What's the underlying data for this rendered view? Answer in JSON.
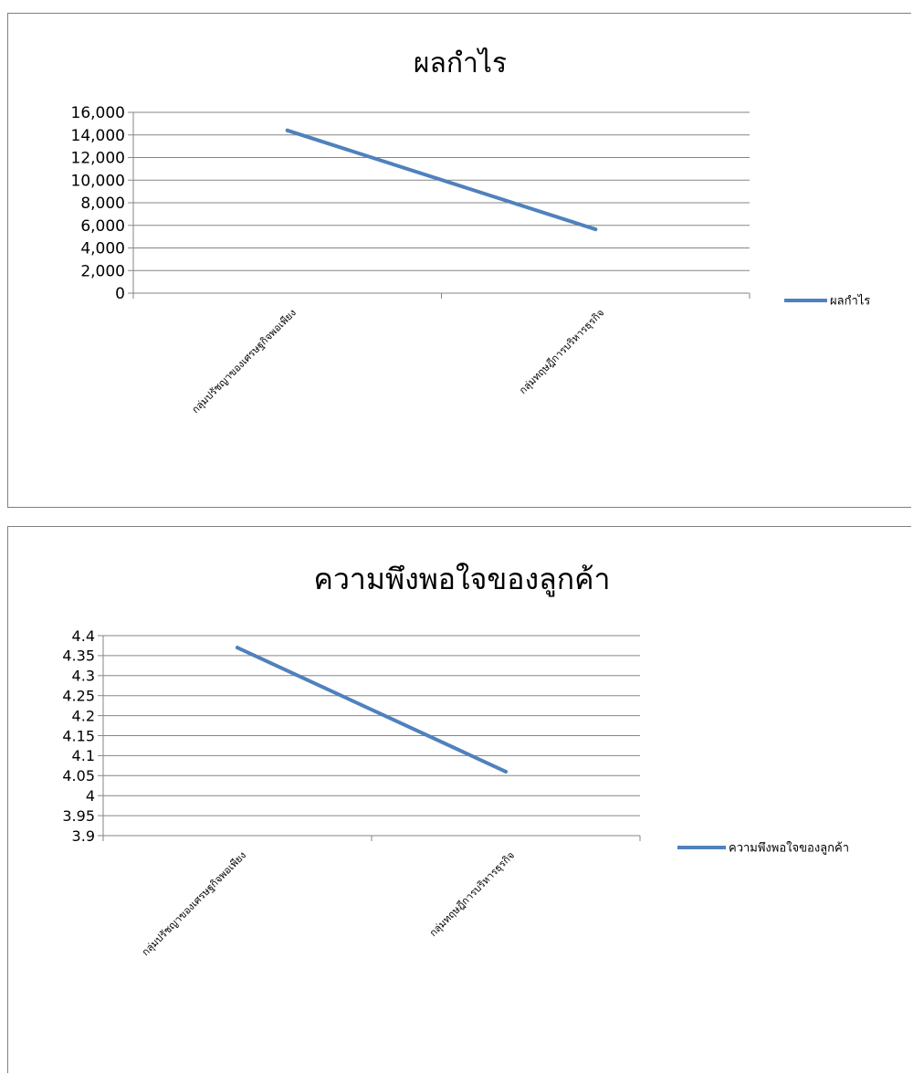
{
  "chart_data": [
    {
      "type": "line",
      "title": "ผลกำไร",
      "categories": [
        "กลุ่มปรัชญาของเศรษฐกิจพอเพียง",
        "กลุ่มทฤษฎีการบริหารธุรกิจ"
      ],
      "series": [
        {
          "name": "ผลกำไร",
          "values": [
            14400,
            5650
          ],
          "color": "#4F81BD"
        }
      ],
      "yticks": [
        "16,000",
        "14,000",
        "12,000",
        "10,000",
        "8,000",
        "6,000",
        "4,000",
        "2,000",
        "0"
      ],
      "ylim": [
        0,
        16000
      ],
      "grid": true,
      "legend": "right"
    },
    {
      "type": "line",
      "title": "ความพึงพอใจของลูกค้า",
      "categories": [
        "กลุ่มปรัชญาของเศรษฐกิจพอเพียง",
        "กลุ่มทฤษฎีการบริหารธุรกิจ"
      ],
      "series": [
        {
          "name": "ความพึงพอใจของลูกค้า",
          "values": [
            4.37,
            4.06
          ],
          "color": "#4F81BD"
        }
      ],
      "yticks": [
        "4.4",
        "4.35",
        "4.3",
        "4.25",
        "4.2",
        "4.15",
        "4.1",
        "4.05",
        "4",
        "3.95",
        "3.9"
      ],
      "ylim": [
        3.9,
        4.4
      ],
      "grid": true,
      "legend": "right"
    }
  ]
}
